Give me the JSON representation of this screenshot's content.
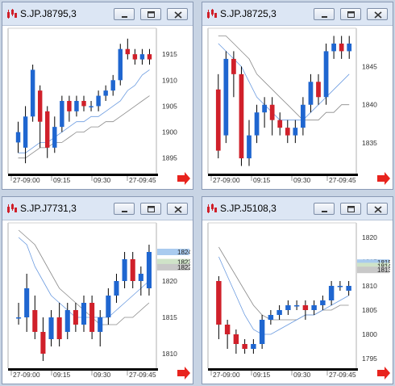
{
  "colors": {
    "up": "#1f66d0",
    "down": "#d0202a",
    "wick": "#000000",
    "ma_fast": "#6b9be0",
    "ma_slow": "#8a8a8a",
    "frame": "#000000",
    "nav_arrow": "#e8231d"
  },
  "icons": {
    "app": "candlestick-chart-icon",
    "minimize": "minimize-icon",
    "restore": "restore-icon",
    "close": "close-icon",
    "nav": "scroll-right-arrow-icon"
  },
  "windows": [
    {
      "title": "S.JP.J8795,3",
      "ylabels": [
        "1915",
        "1910",
        "1905",
        "1900",
        "1895"
      ],
      "yvals": [
        1915,
        1910,
        1905,
        1900,
        1895
      ],
      "ylim": [
        1892,
        1920
      ],
      "xlabels": [
        "27-09:00",
        "09:15",
        "09:30",
        "27-09:45"
      ],
      "price_markers": [],
      "candles": [
        [
          1898,
          1900,
          1896,
          1902
        ],
        [
          1897,
          1903,
          1894,
          1905
        ],
        [
          1903,
          1912,
          1902,
          1913
        ],
        [
          1908,
          1902,
          1897,
          1909
        ],
        [
          1904,
          1897,
          1895,
          1905
        ],
        [
          1897,
          1901,
          1896,
          1903
        ],
        [
          1901,
          1906,
          1900,
          1907
        ],
        [
          1906,
          1904,
          1902,
          1907
        ],
        [
          1904,
          1906,
          1903,
          1907
        ],
        [
          1906,
          1905,
          1904,
          1907
        ],
        [
          1905,
          1905,
          1904,
          1906
        ],
        [
          1905,
          1907,
          1904,
          1908
        ],
        [
          1907,
          1908,
          1906,
          1909
        ],
        [
          1908,
          1910,
          1907,
          1911
        ],
        [
          1910,
          1916,
          1909,
          1917
        ],
        [
          1916,
          1915,
          1914,
          1918
        ],
        [
          1915,
          1914,
          1913,
          1916
        ],
        [
          1914,
          1915,
          1913,
          1916
        ],
        [
          1915,
          1914,
          1913,
          1916
        ]
      ],
      "ma_fast": [
        1896,
        1896,
        1897,
        1898,
        1898,
        1899,
        1900,
        1901,
        1902,
        1902,
        1903,
        1903,
        1904,
        1905,
        1906,
        1908,
        1909,
        1911,
        1912
      ],
      "ma_slow": [
        1895,
        1895,
        1896,
        1897,
        1897,
        1898,
        1898,
        1899,
        1900,
        1900,
        1901,
        1901,
        1902,
        1902,
        1903,
        1904,
        1905,
        1906,
        1907
      ]
    },
    {
      "title": "S.JP.J8725,3",
      "ylabels": [
        "1845",
        "1840",
        "1835"
      ],
      "yvals": [
        1845,
        1840,
        1835
      ],
      "ylim": [
        1831,
        1850
      ],
      "xlabels": [
        "27-09:00",
        "09:15",
        "09:30",
        "27-09:45"
      ],
      "price_markers": [],
      "candles": [
        [
          1842,
          1834,
          1833,
          1844
        ],
        [
          1836,
          1846,
          1835,
          1847
        ],
        [
          1846,
          1844,
          1841,
          1847
        ],
        [
          1844,
          1833,
          1832,
          1845
        ],
        [
          1833,
          1836,
          1832,
          1838
        ],
        [
          1836,
          1839,
          1835,
          1840
        ],
        [
          1839,
          1840,
          1837,
          1841
        ],
        [
          1840,
          1838,
          1836,
          1841
        ],
        [
          1838,
          1837,
          1836,
          1839
        ],
        [
          1837,
          1836,
          1835,
          1838
        ],
        [
          1836,
          1837,
          1835,
          1838
        ],
        [
          1837,
          1840,
          1836,
          1841
        ],
        [
          1840,
          1843,
          1839,
          1844
        ],
        [
          1843,
          1841,
          1840,
          1844
        ],
        [
          1841,
          1847,
          1840,
          1848
        ],
        [
          1847,
          1848,
          1846,
          1849
        ],
        [
          1848,
          1847,
          1846,
          1849
        ],
        [
          1847,
          1848,
          1846,
          1849
        ]
      ],
      "ma_fast": [
        1848,
        1847,
        1846,
        1845,
        1843,
        1841,
        1840,
        1839,
        1838,
        1838,
        1838,
        1838,
        1839,
        1840,
        1841,
        1842,
        1843,
        1844
      ],
      "ma_slow": [
        1849,
        1849,
        1848,
        1847,
        1846,
        1844,
        1843,
        1842,
        1841,
        1840,
        1839,
        1838,
        1838,
        1838,
        1839,
        1839,
        1840,
        1840
      ]
    },
    {
      "title": "S.JP.J7731,3",
      "ylabels": [
        "1820",
        "1815",
        "1810"
      ],
      "yvals": [
        1820,
        1815,
        1810
      ],
      "ylim": [
        1808,
        1828
      ],
      "xlabels": [
        "27-09:00",
        "09:15",
        "09:30",
        "27-09:45"
      ],
      "price_markers": [
        {
          "label": "1824",
          "value": 1824,
          "color": "#a9cbef"
        },
        {
          "label": "1823",
          "value": 1822.6,
          "color": "#cfe3c8"
        },
        {
          "label": "1822",
          "value": 1821.9,
          "color": "#c8c8c8"
        }
      ],
      "candles": [
        [
          1815,
          1815,
          1814,
          1817
        ],
        [
          1815,
          1819,
          1813,
          1821
        ],
        [
          1816,
          1813,
          1812,
          1818
        ],
        [
          1813,
          1810,
          1809,
          1815
        ],
        [
          1812,
          1815,
          1811,
          1816
        ],
        [
          1815,
          1812,
          1811,
          1817
        ],
        [
          1813,
          1816,
          1812,
          1817
        ],
        [
          1816,
          1814,
          1813,
          1817
        ],
        [
          1814,
          1817,
          1813,
          1818
        ],
        [
          1817,
          1813,
          1812,
          1818
        ],
        [
          1813,
          1815,
          1811,
          1816
        ],
        [
          1815,
          1818,
          1814,
          1819
        ],
        [
          1818,
          1820,
          1817,
          1821
        ],
        [
          1820,
          1823,
          1819,
          1824
        ],
        [
          1823,
          1820,
          1819,
          1824
        ],
        [
          1820,
          1821,
          1818,
          1822
        ],
        [
          1819,
          1824,
          1818,
          1825
        ]
      ],
      "ma_fast": [
        1826,
        1825,
        1822,
        1820,
        1818,
        1817,
        1816,
        1815,
        1815,
        1815,
        1815,
        1815,
        1816,
        1817,
        1818,
        1819,
        1820
      ],
      "ma_slow": [
        1827,
        1826,
        1825,
        1823,
        1821,
        1819,
        1818,
        1817,
        1816,
        1815,
        1814,
        1814,
        1814,
        1815,
        1815,
        1816,
        1817
      ]
    },
    {
      "title": "S.JP.J5108,3",
      "ylabels": [
        "1820",
        "1815",
        "1810",
        "1805",
        "1800",
        "1795"
      ],
      "yvals": [
        1820,
        1815,
        1810,
        1805,
        1800,
        1795
      ],
      "ylim": [
        1793,
        1823
      ],
      "xlabels": [
        "27-09:00",
        "09:15",
        "09:30",
        "27-09:45"
      ],
      "price_markers": [
        {
          "label": "1815",
          "value": 1814.8,
          "color": "#a9cbef"
        },
        {
          "label": "1814",
          "value": 1814.1,
          "color": "#cfe3c8"
        },
        {
          "label": "1813",
          "value": 1813.3,
          "color": "#c8c8c8"
        }
      ],
      "candles": [
        [
          1811,
          1802,
          1799,
          1812
        ],
        [
          1802,
          1800,
          1797,
          1803
        ],
        [
          1800,
          1798,
          1796,
          1801
        ],
        [
          1798,
          1797,
          1796,
          1799
        ],
        [
          1797,
          1798,
          1796,
          1799
        ],
        [
          1798,
          1803,
          1797,
          1804
        ],
        [
          1803,
          1804,
          1802,
          1805
        ],
        [
          1804,
          1805,
          1803,
          1806
        ],
        [
          1805,
          1806,
          1804,
          1807
        ],
        [
          1806,
          1806,
          1805,
          1807
        ],
        [
          1806,
          1805,
          1803,
          1807
        ],
        [
          1805,
          1806,
          1804,
          1807
        ],
        [
          1806,
          1807,
          1805,
          1808
        ],
        [
          1807,
          1810,
          1806,
          1811
        ],
        [
          1810,
          1810,
          1809,
          1811
        ],
        [
          1809,
          1810,
          1808,
          1811
        ]
      ],
      "ma_fast": [
        1816,
        1812,
        1808,
        1804,
        1801,
        1800,
        1800,
        1801,
        1802,
        1803,
        1804,
        1804,
        1805,
        1806,
        1807,
        1808
      ],
      "ma_slow": [
        1818,
        1815,
        1812,
        1809,
        1806,
        1804,
        1803,
        1803,
        1803,
        1803,
        1804,
        1804,
        1805,
        1805,
        1806,
        1806
      ]
    }
  ]
}
